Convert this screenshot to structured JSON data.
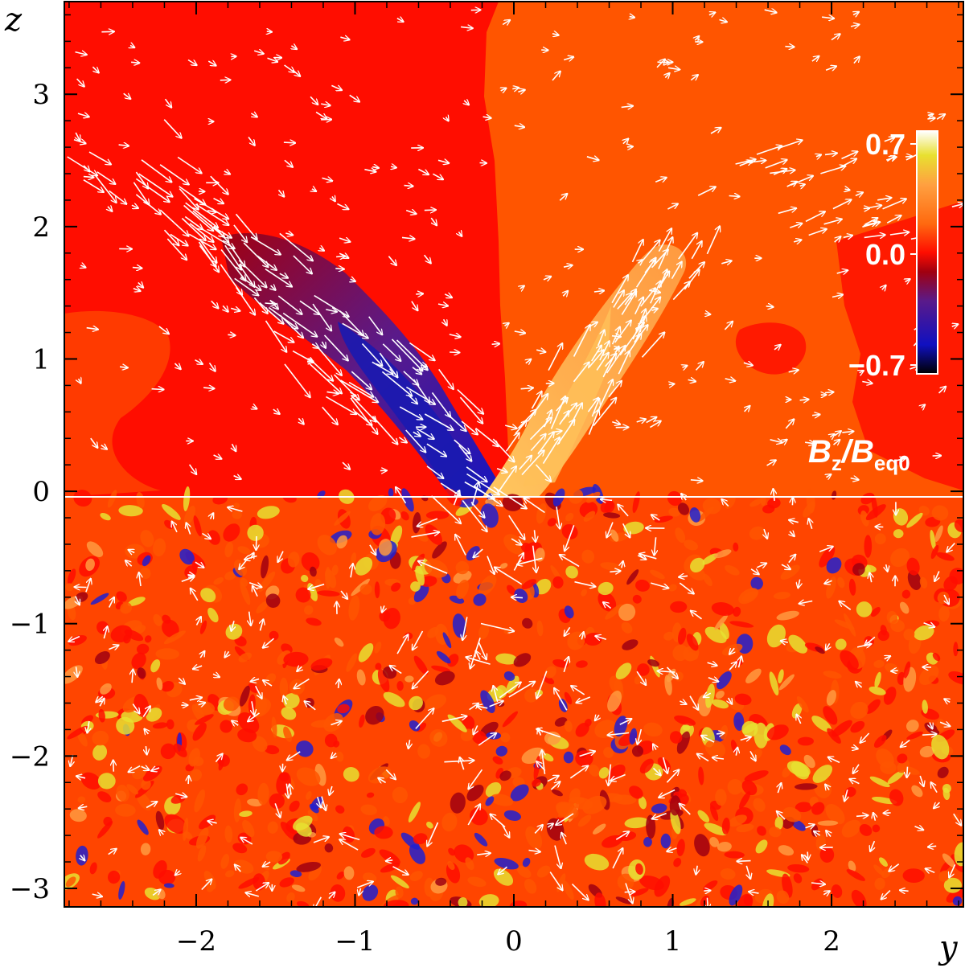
{
  "chart_data": {
    "type": "heatmap",
    "title": "",
    "xlabel": "y",
    "ylabel": "z",
    "xlim": [
      -2.83,
      2.83
    ],
    "ylim": [
      -3.14,
      3.7
    ],
    "x_ticks": [
      -2,
      -1,
      0,
      1,
      2
    ],
    "y_ticks": [
      -3,
      -2,
      -1,
      0,
      1,
      2,
      3
    ],
    "x_tick_labels": [
      "−2",
      "−1",
      "0",
      "1",
      "2"
    ],
    "y_tick_labels": [
      "−3",
      "−2",
      "−1",
      "0",
      "1",
      "2",
      "3"
    ],
    "surface_line_z": 0,
    "colorbar": {
      "title_main": "B",
      "title_sub_1": "z",
      "title_slash": "/",
      "title_main_2": "B",
      "title_sub_2": "eq0",
      "range": [
        -0.7,
        0.7
      ],
      "tick_labels": [
        "0.7",
        "0.0",
        "−0.7"
      ],
      "tick_values": [
        0.7,
        0.0,
        -0.7
      ],
      "placement": "right-inside"
    },
    "field_description": {
      "upper_left_background": -0.05,
      "upper_right_background": 0.08,
      "negative_lobe": {
        "y_range": [
          -1.1,
          -0.2
        ],
        "z_range": [
          0,
          2.1
        ],
        "peak": -0.7
      },
      "positive_lobe": {
        "y_range": [
          0.0,
          1.0
        ],
        "z_range": [
          0,
          1.9
        ],
        "peak": 0.45
      },
      "lower_region": "turbulent mixed polarity, concentrated near y in [-1, 0.8]"
    },
    "vectors": "velocity field arrows (white), converging into the flux tubes above the surface",
    "grid": false,
    "legend": "none"
  },
  "colors": {
    "neg_strong": "#000000",
    "neg": "#2020d0",
    "neg_mid": "#5a1a8a",
    "neg_weak": "#a00010",
    "zero": "#ff0d00",
    "pos_weak": "#ff5500",
    "pos_mid": "#ff9a40",
    "pos": "#e8e030",
    "pos_strong": "#ffffff",
    "arrow": "#ffffff"
  }
}
